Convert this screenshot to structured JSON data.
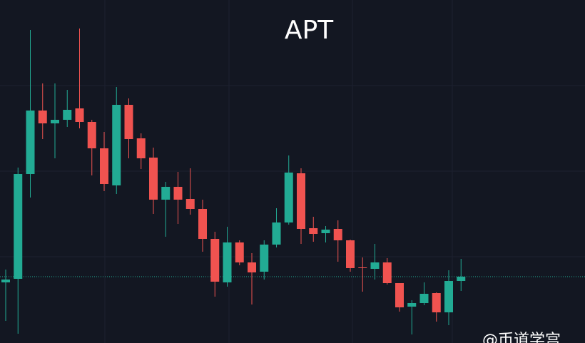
{
  "chart_data": {
    "type": "candlestick",
    "title": "APT",
    "watermark": "@币道学宫",
    "up_color": "#22ab94",
    "down_color": "#f05350",
    "ylim": [
      0,
      481
    ],
    "open": [
      85,
      90,
      237,
      326,
      308,
      313,
      329,
      310,
      273,
      221,
      334,
      287,
      260,
      201,
      219,
      202,
      188,
      146,
      85,
      141,
      113,
      100,
      138,
      169,
      238,
      161,
      154,
      160,
      144,
      106,
      104,
      113,
      84,
      51,
      56,
      70,
      43,
      87
    ],
    "close": [
      89,
      237,
      326,
      308,
      313,
      327,
      310,
      273,
      223,
      334,
      286,
      259,
      201,
      219,
      201,
      188,
      146,
      86,
      141,
      113,
      99,
      138,
      169,
      239,
      160,
      153,
      159,
      144,
      105,
      105,
      113,
      84,
      50,
      56,
      69,
      43,
      87,
      93
    ],
    "high": [
      103,
      246,
      439,
      364,
      364,
      355,
      441,
      313,
      296,
      359,
      343,
      294,
      274,
      226,
      240,
      245,
      201,
      156,
      163,
      144,
      126,
      144,
      189,
      263,
      245,
      177,
      164,
      172,
      145,
      120,
      139,
      119,
      84,
      60,
      85,
      71,
      102,
      118
    ],
    "low": [
      31,
      13,
      204,
      286,
      259,
      303,
      301,
      235,
      213,
      209,
      259,
      244,
      181,
      149,
      167,
      180,
      128,
      65,
      79,
      109,
      54,
      89,
      134,
      166,
      139,
      142,
      141,
      114,
      100,
      72,
      89,
      82,
      44,
      12,
      53,
      30,
      25,
      73
    ]
  }
}
